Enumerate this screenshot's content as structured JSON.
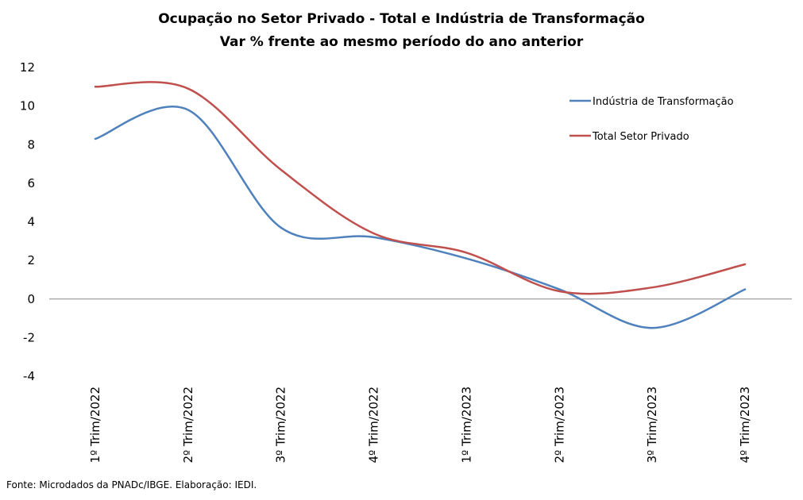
{
  "chart_data": {
    "type": "line",
    "title": "Ocupação no Setor Privado - Total e Indústria de Transformação",
    "subtitle": "Var % frente ao mesmo período do ano anterior",
    "categories": [
      "1º Trim/2022",
      "2º Trim/2022",
      "3º Trim/2022",
      "4º Trim/2022",
      "1º Trim/2023",
      "2º Trim/2023",
      "3º Trim/2023",
      "4º Trim/2023"
    ],
    "series": [
      {
        "name": "Indústria de Transformação",
        "color": "#4F81BD",
        "values": [
          8.3,
          9.8,
          3.7,
          3.2,
          2.1,
          0.5,
          -1.5,
          0.5
        ]
      },
      {
        "name": "Total Setor Privado",
        "color": "#C0504D",
        "values": [
          11.0,
          10.9,
          6.7,
          3.4,
          2.4,
          0.4,
          0.6,
          1.8
        ]
      }
    ],
    "ylim": [
      -4,
      12
    ],
    "yticks": [
      "-4",
      "-2",
      "0",
      "2",
      "4",
      "6",
      "8",
      "10",
      "12"
    ],
    "xlabel": "",
    "ylabel": "",
    "grid": false,
    "legend_position": "top-right",
    "smooth": true
  },
  "source": "Fonte: Microdados da PNADc/IBGE. Elaboração: IEDI."
}
